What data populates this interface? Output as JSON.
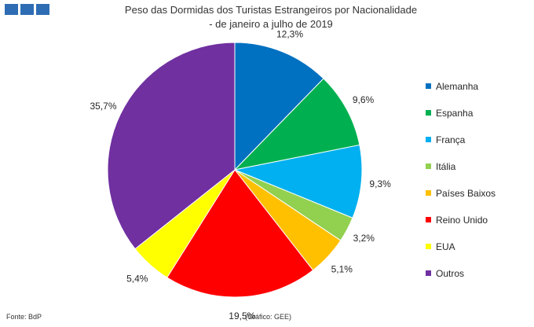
{
  "logo_icon": "institution-logo-blocks",
  "chart_data": {
    "type": "pie",
    "title": "Peso das Dormidas dos Turistas Estrangeiros por Nacionalidade",
    "subtitle": "- de janeiro a julho de 2019",
    "legend_position": "right",
    "slices": [
      {
        "label": "Alemanha",
        "value": 12.3,
        "display": "12,3%",
        "color": "#0070c0"
      },
      {
        "label": "Espanha",
        "value": 9.6,
        "display": "9,6%",
        "color": "#00b050"
      },
      {
        "label": "França",
        "value": 9.3,
        "display": "9,3%",
        "color": "#00b0f0"
      },
      {
        "label": "Itália",
        "value": 3.2,
        "display": "3,2%",
        "color": "#92d050"
      },
      {
        "label": "Países Baixos",
        "value": 5.1,
        "display": "5,1%",
        "color": "#ffc000"
      },
      {
        "label": "Reino Unido",
        "value": 19.5,
        "display": "19,5%",
        "color": "#ff0000"
      },
      {
        "label": "EUA",
        "value": 5.4,
        "display": "5,4%",
        "color": "#ffff00"
      },
      {
        "label": "Outros",
        "value": 35.7,
        "display": "35,7%",
        "color": "#7030a0"
      }
    ]
  },
  "footer": {
    "source": "Fonte: BdP",
    "credit": "(Gráfico: GEE)"
  }
}
